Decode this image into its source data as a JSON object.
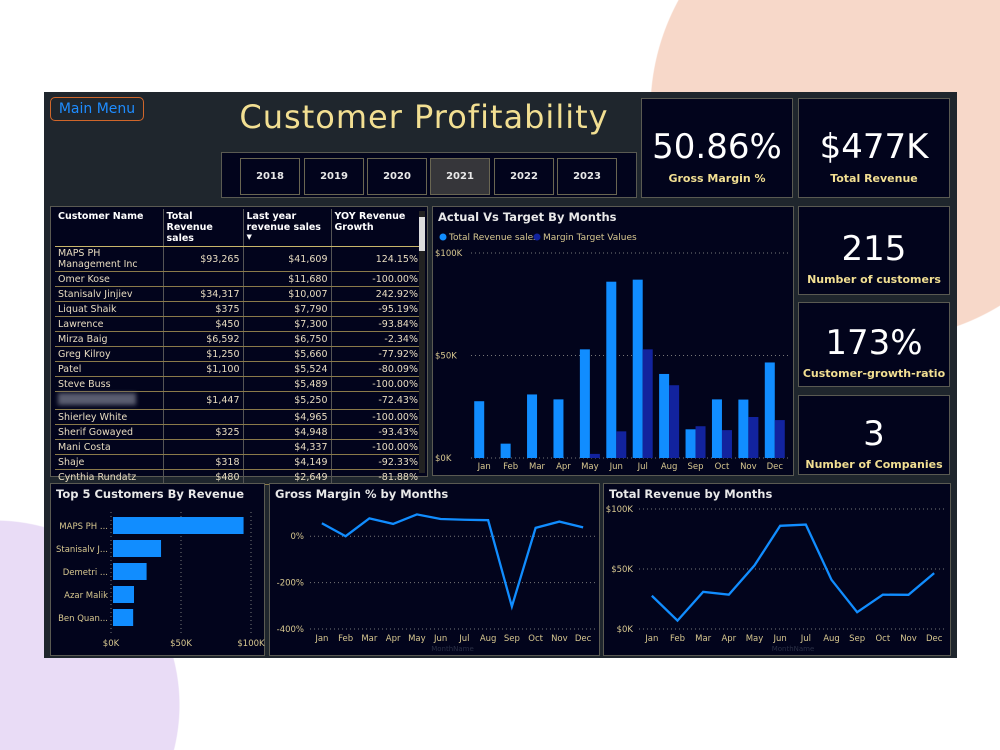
{
  "header": {
    "menu_label": "Main Menu",
    "title": "Customer Profitability"
  },
  "years": {
    "options": [
      "2018",
      "2019",
      "2020",
      "2021",
      "2022",
      "2023"
    ],
    "selected": "2021"
  },
  "kpis": [
    {
      "value": "50.86%",
      "label": "Gross Margin %"
    },
    {
      "value": "$477K",
      "label": "Total Revenue"
    },
    {
      "value": "215",
      "label": "Number of customers"
    },
    {
      "value": "173%",
      "label": "Customer-growth-ratio"
    },
    {
      "value": "3",
      "label": "Number of Companies"
    }
  ],
  "table": {
    "columns": [
      "Customer Name",
      "Total Revenue sales",
      "Last year revenue sales",
      "YOY Revenue Growth"
    ],
    "sort_column": "Last year revenue sales",
    "rows": [
      [
        "MAPS PH Management Inc",
        "$93,265",
        "$41,609",
        "124.15%"
      ],
      [
        "Omer Kose",
        "",
        "$11,680",
        "-100.00%"
      ],
      [
        "Stanisalv Jinjiev",
        "$34,317",
        "$10,007",
        "242.92%"
      ],
      [
        "Liquat Shaik",
        "$375",
        "$7,790",
        "-95.19%"
      ],
      [
        "Lawrence",
        "$450",
        "$7,300",
        "-93.84%"
      ],
      [
        "Mirza Baig",
        "$6,592",
        "$6,750",
        "-2.34%"
      ],
      [
        "Greg Kilroy",
        "$1,250",
        "$5,660",
        "-77.92%"
      ],
      [
        "Patel",
        "$1,100",
        "$5,524",
        "-80.09%"
      ],
      [
        "Steve Buss",
        "",
        "$5,489",
        "-100.00%"
      ],
      [
        "",
        "$1,447",
        "$5,250",
        "-72.43%"
      ],
      [
        "Shierley White",
        "",
        "$4,965",
        "-100.00%"
      ],
      [
        "Sherif Gowayed",
        "$325",
        "$4,948",
        "-93.43%"
      ],
      [
        "Mani Costa",
        "",
        "$4,337",
        "-100.00%"
      ],
      [
        "Shaje",
        "$318",
        "$4,149",
        "-92.33%"
      ],
      [
        "Cynthia Rundatz",
        "$480",
        "$2,649",
        "-81.88%"
      ]
    ]
  },
  "chart_data": [
    {
      "type": "bar",
      "title": "Actual Vs Target By Months",
      "legend_position": "top-left",
      "grid": true,
      "categories": [
        "Jan",
        "Feb",
        "Mar",
        "Apr",
        "May",
        "Jun",
        "Jul",
        "Aug",
        "Sep",
        "Oct",
        "Nov",
        "Dec"
      ],
      "yticks": [
        "$0K",
        "$50K",
        "$100K"
      ],
      "ylim": [
        0,
        100000
      ],
      "series": [
        {
          "name": "Total Revenue sales",
          "color": "#118dff",
          "values": [
            27700,
            7000,
            31000,
            28600,
            53000,
            86000,
            87000,
            41000,
            14000,
            28600,
            28500,
            46600
          ]
        },
        {
          "name": "Margin Target Values",
          "color": "#12239e",
          "values": [
            0,
            0,
            0,
            0,
            2000,
            13000,
            53000,
            35500,
            15500,
            13600,
            20000,
            18500
          ]
        }
      ]
    },
    {
      "type": "bar",
      "orientation": "horizontal",
      "title": "Top 5 Customers By Revenue",
      "grid": true,
      "categories": [
        "MAPS PH ...",
        "Stanisalv J...",
        "Demetri ...",
        "Azar Malik",
        "Ben Quan..."
      ],
      "values": [
        93265,
        34317,
        24000,
        15000,
        14400
      ],
      "color": "#118dff",
      "xticks": [
        "$0K",
        "$50K",
        "$100K"
      ],
      "xlim": [
        0,
        100000
      ]
    },
    {
      "type": "line",
      "title": "Gross Margin % by Months",
      "xlabel": "MonthName",
      "grid": true,
      "categories": [
        "Jan",
        "Feb",
        "Mar",
        "Apr",
        "May",
        "Jun",
        "Jul",
        "Aug",
        "Sep",
        "Oct",
        "Nov",
        "Dec"
      ],
      "values": [
        56,
        0,
        77,
        53,
        94,
        74,
        71,
        69,
        -303,
        36,
        63,
        38
      ],
      "color": "#118dff",
      "yticks": [
        "0%",
        "-200%",
        "-400%"
      ],
      "ylim": [
        -400,
        100
      ]
    },
    {
      "type": "line",
      "title": "Total Revenue by Months",
      "xlabel": "MonthName",
      "grid": true,
      "categories": [
        "Jan",
        "Feb",
        "Mar",
        "Apr",
        "May",
        "Jun",
        "Jul",
        "Aug",
        "Sep",
        "Oct",
        "Nov",
        "Dec"
      ],
      "values": [
        27700,
        7000,
        31000,
        28600,
        53000,
        86000,
        87000,
        41000,
        14000,
        28600,
        28500,
        46600
      ],
      "color": "#118dff",
      "yticks": [
        "$0K",
        "$50K",
        "$100K"
      ],
      "ylim": [
        0,
        100000
      ]
    }
  ]
}
